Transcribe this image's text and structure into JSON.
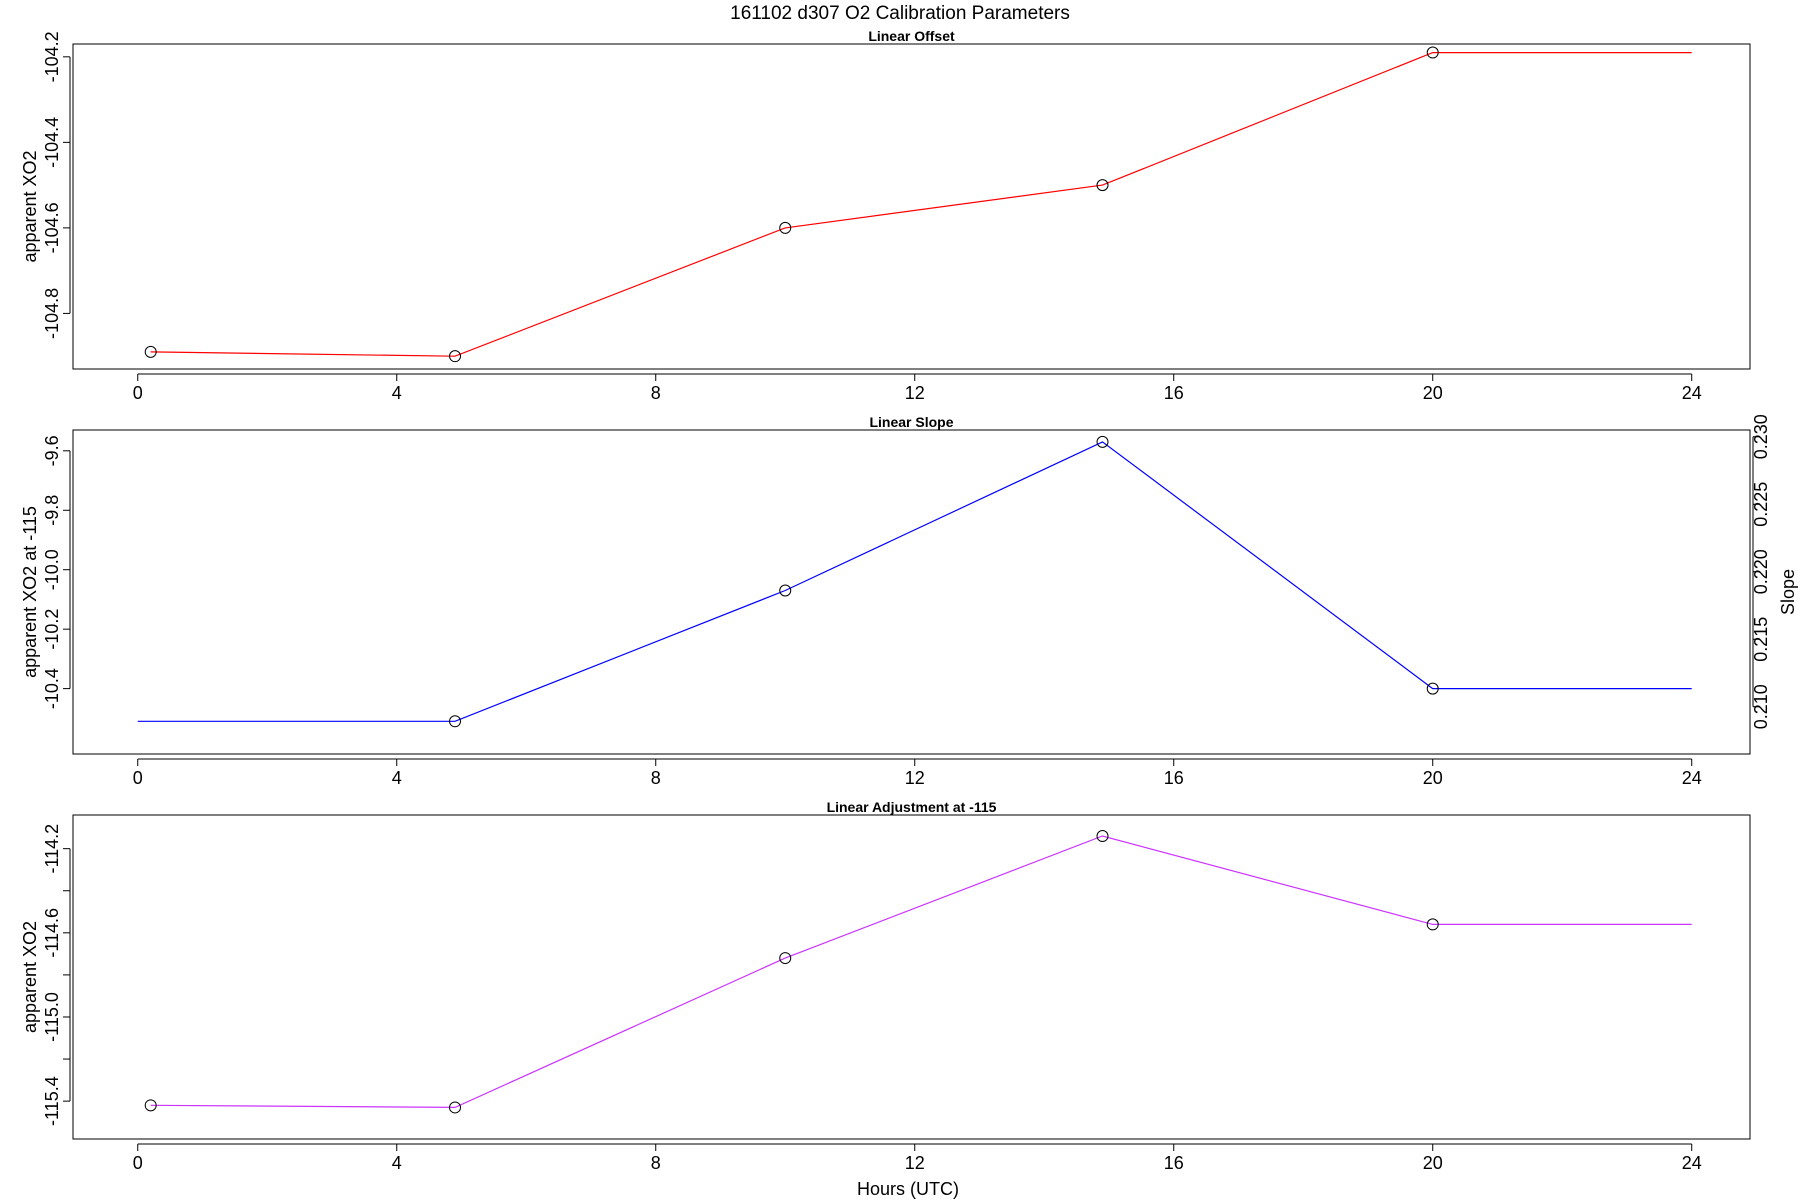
{
  "figure": {
    "title": "161102   d307   O2 Calibration Parameters",
    "xlabel": "Hours (UTC)"
  },
  "chart_data": [
    {
      "type": "line",
      "title": "Linear Offset",
      "xlabel": "",
      "ylabel": "apparent XO2",
      "xlim": [
        -1.0,
        24.9
      ],
      "ylim": [
        -104.93,
        -104.17
      ],
      "xticks": [
        0,
        4,
        8,
        12,
        16,
        20,
        24
      ],
      "yticks": [
        -104.8,
        -104.6,
        -104.4,
        -104.2
      ],
      "ytick_labels": [
        "-104.8",
        "-104.6",
        "-104.4",
        "-104.2"
      ],
      "series": [
        {
          "color": "#ff0000",
          "x": [
            0.2,
            4.9,
            10.0,
            14.9,
            20.0,
            24.0
          ],
          "y": [
            -104.89,
            -104.9,
            -104.6,
            -104.5,
            -104.19,
            -104.19
          ],
          "markers": [
            true,
            true,
            true,
            true,
            true,
            false
          ]
        }
      ]
    },
    {
      "type": "line",
      "title": "Linear Slope",
      "xlabel": "",
      "ylabel": "apparent XO2 at -115",
      "y2label": "Slope",
      "xlim": [
        -1.0,
        24.9
      ],
      "ylim": [
        -10.62,
        -9.53
      ],
      "xticks": [
        0,
        4,
        8,
        12,
        16,
        20,
        24
      ],
      "yticks": [
        -10.4,
        -10.2,
        -10.0,
        -9.8,
        -9.6
      ],
      "ytick_labels": [
        "-10.4",
        "-10.2",
        "-10.0",
        "-9.8",
        "-9.6"
      ],
      "y2ticks": [
        0.21,
        0.215,
        0.22,
        0.225,
        0.23
      ],
      "y2tick_labels": [
        "0.210",
        "0.215",
        "0.220",
        "0.225",
        "0.230"
      ],
      "y2lim": [
        0.2065,
        0.2305
      ],
      "series": [
        {
          "color": "#0000ff",
          "x": [
            0.0,
            4.9,
            10.0,
            14.9,
            20.0,
            24.0
          ],
          "y": [
            -10.51,
            -10.51,
            -10.07,
            -9.57,
            -10.4,
            -10.4
          ],
          "markers": [
            false,
            true,
            true,
            true,
            true,
            false
          ]
        }
      ]
    },
    {
      "type": "line",
      "title": "Linear Adjustment at -115",
      "xlabel": "Hours (UTC)",
      "ylabel": "apparent XO2",
      "xlim": [
        -1.0,
        24.9
      ],
      "ylim": [
        -115.58,
        -114.04
      ],
      "xticks": [
        0,
        4,
        8,
        12,
        16,
        20,
        24
      ],
      "yticks": [
        -115.4,
        -115.2,
        -115.0,
        -114.8,
        -114.6,
        -114.4,
        -114.2
      ],
      "ytick_labels": [
        "-115.4",
        "",
        "-115.0",
        "",
        "-114.6",
        "",
        "-114.2"
      ],
      "series": [
        {
          "color": "#cc33ff",
          "x": [
            0.2,
            4.9,
            10.0,
            14.9,
            20.0,
            24.0
          ],
          "y": [
            -115.42,
            -115.43,
            -114.72,
            -114.14,
            -114.56,
            -114.56
          ],
          "markers": [
            true,
            true,
            true,
            true,
            true,
            false
          ]
        }
      ]
    }
  ]
}
